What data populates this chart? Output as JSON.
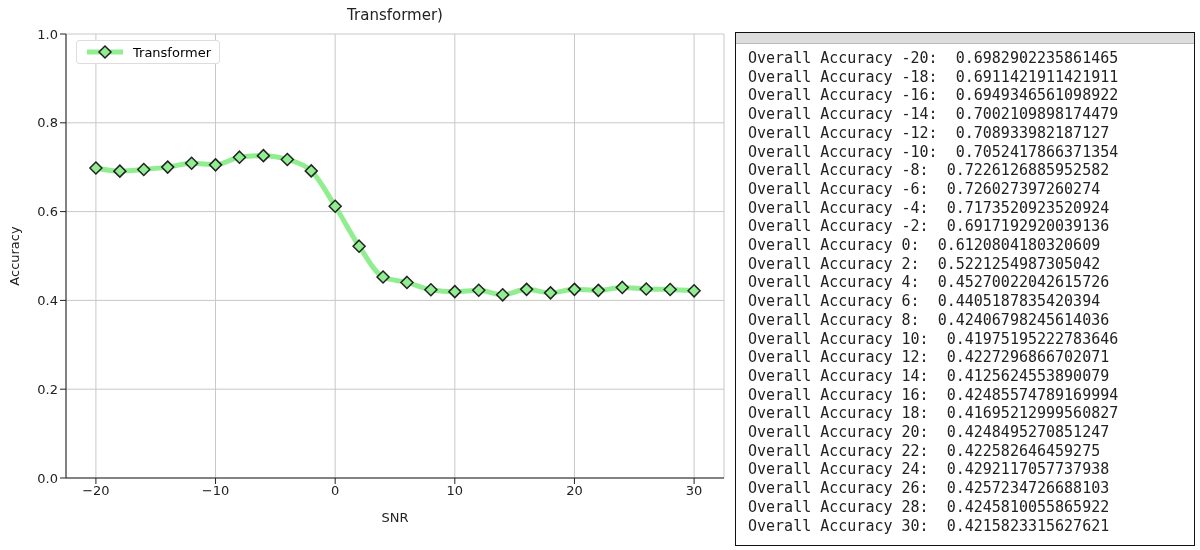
{
  "chart_data": [
    {
      "type": "line",
      "title": "Transformer)",
      "xlabel": "SNR",
      "ylabel": "Accuracy",
      "x": [
        -20,
        -18,
        -16,
        -14,
        -12,
        -10,
        -8,
        -6,
        -4,
        -2,
        0,
        2,
        4,
        6,
        8,
        10,
        12,
        14,
        16,
        18,
        20,
        22,
        24,
        26,
        28,
        30
      ],
      "series": [
        {
          "name": "Transformer",
          "color": "#90ee90",
          "values": [
            0.6982902235861465,
            0.6911421911421911,
            0.6949346561098922,
            0.7002109898174479,
            0.70893398218712,
            0.7052417866371354,
            0.7226126885952582,
            0.726027397260274,
            0.7173520923520924,
            0.6917192920039136,
            0.6120804180320609,
            0.5221254987305042,
            0.45270022042615726,
            0.4405187835420394,
            0.42406798245614036,
            0.41975195222783646,
            0.4227296866702071,
            0.4125624553890079,
            0.42485574789169994,
            0.41695212999560827,
            0.4248495270851247,
            0.422582646459275,
            0.4292117057737938,
            0.4257234726688103,
            0.4245810055865922,
            0.4215823315627621
          ]
        }
      ],
      "xlim": [
        -22.5,
        32.5
      ],
      "xticks": [
        {
          "value": -20,
          "label": "−20"
        },
        {
          "value": -10,
          "label": "−10"
        },
        0,
        10,
        20,
        30
      ],
      "ylim": [
        0,
        1
      ],
      "yticks": [
        {
          "value": 0,
          "label": "0.0"
        },
        0.2,
        0.4,
        0.6,
        0.8,
        {
          "value": 1,
          "label": "1.0"
        }
      ],
      "grid": true,
      "legend": "top left",
      "marker": "diamond",
      "line_style": "solid"
    },
    {
      "type": "other",
      "annotations": [
        "Overall Accuracy -20:  0.6982902235861465",
        "Overall Accuracy -18:  0.6911421911421911",
        "Overall Accuracy -16:  0.6949346561098922",
        "Overall Accuracy -14:  0.7002109898174479",
        "Overall Accuracy -12:  0.708933982187127",
        "Overall Accuracy -10:  0.7052417866371354",
        "Overall Accuracy -8:  0.7226126885952582",
        "Overall Accuracy -6:  0.726027397260274",
        "Overall Accuracy -4:  0.7173520923520924",
        "Overall Accuracy -2:  0.6917192920039136",
        "Overall Accuracy 0:  0.6120804180320609",
        "Overall Accuracy 2:  0.5221254987305042",
        "Overall Accuracy 4:  0.45270022042615726",
        "Overall Accuracy 6:  0.4405187835420394",
        "Overall Accuracy 8:  0.42406798245614036",
        "Overall Accuracy 10:  0.41975195222783646",
        "Overall Accuracy 12:  0.4227296866702071",
        "Overall Accuracy 14:  0.4125624553890079",
        "Overall Accuracy 16:  0.42485574789169994",
        "Overall Accuracy 18:  0.41695212999560827",
        "Overall Accuracy 20:  0.4248495270851247",
        "Overall Accuracy 22:  0.422582646459275",
        "Overall Accuracy 24:  0.4292117057737938",
        "Overall Accuracy 26:  0.4257234726688103",
        "Overall Accuracy 28:  0.4245810055865922",
        "Overall Accuracy 30:  0.4215823315627621"
      ]
    }
  ]
}
